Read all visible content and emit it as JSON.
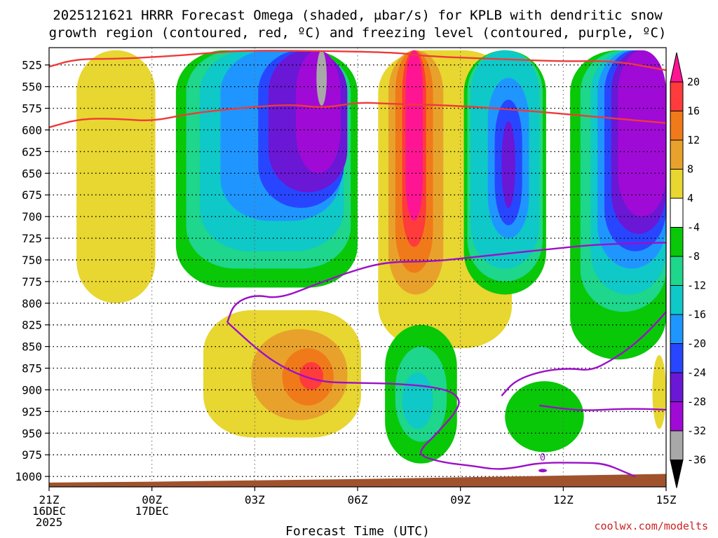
{
  "chart_data": {
    "type": "contour",
    "title_line1": "2025121621 HRRR Forecast Omega (shaded, μbar/s) for KPLB with dendritic snow",
    "title_line2": "growth region (contoured, red, ºC) and freezing level (contoured, purple, ºC)",
    "xlabel": "Forecast Time (UTC)",
    "credit": "coolwx.com/modelts",
    "y_ticks": [
      525,
      550,
      575,
      600,
      625,
      650,
      675,
      700,
      725,
      750,
      775,
      800,
      825,
      850,
      875,
      900,
      925,
      950,
      975,
      1000
    ],
    "y_range_hpa": [
      505,
      1012
    ],
    "x_range_hours": [
      0,
      18
    ],
    "x_ticks": [
      {
        "hour": 0,
        "lines": [
          "21Z",
          "16DEC",
          "2025"
        ]
      },
      {
        "hour": 3,
        "lines": [
          "00Z",
          "17DEC"
        ]
      },
      {
        "hour": 6,
        "lines": [
          "03Z"
        ]
      },
      {
        "hour": 9,
        "lines": [
          "06Z"
        ]
      },
      {
        "hour": 12,
        "lines": [
          "09Z"
        ]
      },
      {
        "hour": 15,
        "lines": [
          "12Z"
        ]
      },
      {
        "hour": 18,
        "lines": [
          "15Z"
        ]
      }
    ],
    "colorbar": {
      "labels": [
        "20",
        "16",
        "12",
        "8",
        "4",
        "-4",
        "-8",
        "-12",
        "-16",
        "-20",
        "-24",
        "-28",
        "-32",
        "-36"
      ],
      "colors": [
        "#ff1493",
        "#ff3b3b",
        "#f07a1a",
        "#e8a22c",
        "#e8d631",
        "#ffffff",
        "#08c808",
        "#1ed68c",
        "#0fc8c8",
        "#1f96ff",
        "#2846ff",
        "#6b17d6",
        "#a00ad6",
        "#a8a8a8"
      ]
    },
    "omega_regions": [
      {
        "cls": "col1-pos",
        "value": 4,
        "color": "#e8d631",
        "t0": 0.8,
        "t1": 3.1,
        "p0": 508,
        "p1": 800
      },
      {
        "cls": "col2-neg",
        "value": -8,
        "color": "#08c808",
        "t0": 3.7,
        "t1": 9.0,
        "p0": 508,
        "p1": 782
      },
      {
        "cls": "col2-neg",
        "value": -12,
        "color": "#1ed68c",
        "t0": 4.0,
        "t1": 8.8,
        "p0": 508,
        "p1": 760
      },
      {
        "cls": "col2-neg",
        "value": -16,
        "color": "#0fc8c8",
        "t0": 4.4,
        "t1": 8.6,
        "p0": 508,
        "p1": 740
      },
      {
        "cls": "col2-neg",
        "value": -20,
        "color": "#1f96ff",
        "t0": 5.0,
        "t1": 8.5,
        "p0": 508,
        "p1": 705
      },
      {
        "cls": "col2-neg",
        "value": -24,
        "color": "#2846ff",
        "t0": 6.1,
        "t1": 8.6,
        "p0": 508,
        "p1": 690
      },
      {
        "cls": "col2-neg",
        "value": -28,
        "color": "#6b17d6",
        "t0": 6.4,
        "t1": 8.7,
        "p0": 508,
        "p1": 672
      },
      {
        "cls": "col2-neg",
        "value": -32,
        "color": "#a00ad6",
        "t0": 7.2,
        "t1": 8.5,
        "p0": 508,
        "p1": 650
      },
      {
        "cls": "col2-neg",
        "value": -36,
        "color": "#a8a8a8",
        "t0": 7.8,
        "t1": 8.1,
        "p0": 508,
        "p1": 572
      },
      {
        "cls": "col3-pos",
        "value": 4,
        "color": "#e8d631",
        "t0": 9.6,
        "t1": 13.5,
        "p0": 508,
        "p1": 852
      },
      {
        "cls": "col3-pos",
        "value": 8,
        "color": "#e8a22c",
        "t0": 9.9,
        "t1": 11.5,
        "p0": 508,
        "p1": 790
      },
      {
        "cls": "col3-pos",
        "value": 12,
        "color": "#f07a1a",
        "t0": 10.1,
        "t1": 11.2,
        "p0": 508,
        "p1": 765
      },
      {
        "cls": "col3-pos",
        "value": 16,
        "color": "#ff3b3b",
        "t0": 10.3,
        "t1": 11.0,
        "p0": 508,
        "p1": 735
      },
      {
        "cls": "col3-pos",
        "value": 20,
        "color": "#ff1493",
        "t0": 10.4,
        "t1": 10.9,
        "p0": 508,
        "p1": 705
      },
      {
        "cls": "col4-neg",
        "value": -8,
        "color": "#08c808",
        "t0": 12.1,
        "t1": 14.5,
        "p0": 508,
        "p1": 790
      },
      {
        "cls": "col4-neg",
        "value": -12,
        "color": "#1ed68c",
        "t0": 12.2,
        "t1": 14.4,
        "p0": 508,
        "p1": 775
      },
      {
        "cls": "col4-neg",
        "value": -16,
        "color": "#0fc8c8",
        "t0": 12.3,
        "t1": 14.3,
        "p0": 508,
        "p1": 760
      },
      {
        "cls": "col4-neg",
        "value": -20,
        "color": "#1f96ff",
        "t0": 12.8,
        "t1": 14.0,
        "p0": 540,
        "p1": 725
      },
      {
        "cls": "col4-neg",
        "value": -24,
        "color": "#2846ff",
        "t0": 13.0,
        "t1": 13.8,
        "p0": 565,
        "p1": 710
      },
      {
        "cls": "col4-neg",
        "value": -28,
        "color": "#6b17d6",
        "t0": 13.2,
        "t1": 13.6,
        "p0": 590,
        "p1": 690
      },
      {
        "cls": "col5-neg",
        "value": -8,
        "color": "#08c808",
        "t0": 15.2,
        "t1": 18.0,
        "p0": 508,
        "p1": 865
      },
      {
        "cls": "col5-neg",
        "value": -12,
        "color": "#1ed68c",
        "t0": 15.5,
        "t1": 18.0,
        "p0": 508,
        "p1": 810
      },
      {
        "cls": "col5-neg",
        "value": -16,
        "color": "#0fc8c8",
        "t0": 15.8,
        "t1": 18.0,
        "p0": 508,
        "p1": 790
      },
      {
        "cls": "col5-neg",
        "value": -20,
        "color": "#1f96ff",
        "t0": 16.0,
        "t1": 18.0,
        "p0": 508,
        "p1": 760
      },
      {
        "cls": "col5-neg",
        "value": -24,
        "color": "#2846ff",
        "t0": 16.2,
        "t1": 18.0,
        "p0": 508,
        "p1": 740
      },
      {
        "cls": "col5-neg",
        "value": -28,
        "color": "#6b17d6",
        "t0": 16.4,
        "t1": 18.0,
        "p0": 508,
        "p1": 720
      },
      {
        "cls": "col5-neg",
        "value": -32,
        "color": "#a00ad6",
        "t0": 16.6,
        "t1": 18.0,
        "p0": 508,
        "p1": 700
      },
      {
        "cls": "low-pos",
        "value": 4,
        "color": "#e8d631",
        "t0": 4.5,
        "t1": 9.1,
        "p0": 808,
        "p1": 955
      },
      {
        "cls": "low-pos",
        "value": 8,
        "color": "#e8a22c",
        "t0": 5.9,
        "t1": 8.7,
        "p0": 830,
        "p1": 935
      },
      {
        "cls": "low-pos",
        "value": 12,
        "color": "#f07a1a",
        "t0": 6.8,
        "t1": 8.3,
        "p0": 852,
        "p1": 918
      },
      {
        "cls": "low-pos",
        "value": 16,
        "color": "#ff3b3b",
        "t0": 7.3,
        "t1": 8.0,
        "p0": 868,
        "p1": 900
      },
      {
        "cls": "low-neg",
        "value": -8,
        "color": "#08c808",
        "t0": 9.8,
        "t1": 11.9,
        "p0": 825,
        "p1": 985
      },
      {
        "cls": "low-neg",
        "value": -12,
        "color": "#1ed68c",
        "t0": 10.1,
        "t1": 11.6,
        "p0": 850,
        "p1": 960
      },
      {
        "cls": "low-neg",
        "value": -16,
        "color": "#0fc8c8",
        "t0": 10.3,
        "t1": 11.2,
        "p0": 880,
        "p1": 945
      },
      {
        "cls": "low-neg2",
        "value": -8,
        "color": "#08c808",
        "t0": 13.3,
        "t1": 15.6,
        "p0": 890,
        "p1": 972
      },
      {
        "cls": "edge-pos",
        "value": 4,
        "color": "#e8d631",
        "t0": 17.6,
        "t1": 18.0,
        "p0": 860,
        "p1": 945
      }
    ],
    "dgz_lines": [
      {
        "name": "upper",
        "points": [
          [
            0,
            527
          ],
          [
            0.8,
            518
          ],
          [
            2.0,
            518
          ],
          [
            3.5,
            515
          ],
          [
            5.0,
            510
          ],
          [
            6.0,
            508
          ],
          [
            10.0,
            510
          ],
          [
            11.0,
            515
          ],
          [
            13.0,
            518
          ],
          [
            15.0,
            521
          ],
          [
            16.5,
            520
          ],
          [
            18.0,
            531
          ]
        ]
      },
      {
        "name": "lower",
        "points": [
          [
            0,
            597
          ],
          [
            0.9,
            587
          ],
          [
            2.0,
            587
          ],
          [
            3.0,
            590
          ],
          [
            4.0,
            582
          ],
          [
            5.0,
            577
          ],
          [
            7.0,
            570
          ],
          [
            8.0,
            575
          ],
          [
            9.0,
            568
          ],
          [
            10.0,
            570
          ],
          [
            12.0,
            572
          ],
          [
            14.0,
            578
          ],
          [
            16.0,
            585
          ],
          [
            18.0,
            592
          ]
        ]
      }
    ],
    "freezing_lines": [
      {
        "name": "main",
        "points": [
          [
            5.2,
            822
          ],
          [
            5.4,
            800
          ],
          [
            6.0,
            790
          ],
          [
            6.7,
            795
          ],
          [
            7.8,
            778
          ],
          [
            8.9,
            762
          ],
          [
            9.9,
            752
          ],
          [
            11.2,
            752
          ],
          [
            12.8,
            745
          ],
          [
            14.5,
            738
          ],
          [
            16.0,
            732
          ],
          [
            18.0,
            730
          ]
        ]
      },
      {
        "name": "lower-branch",
        "points": [
          [
            5.2,
            822
          ],
          [
            6.2,
            858
          ],
          [
            7.0,
            878
          ],
          [
            7.9,
            891
          ],
          [
            9.0,
            892
          ],
          [
            10.2,
            893
          ],
          [
            11.3,
            897
          ],
          [
            11.9,
            905
          ],
          [
            12.0,
            920
          ],
          [
            11.2,
            955
          ],
          [
            10.9,
            966
          ],
          [
            10.8,
            976
          ],
          [
            11.5,
            984
          ],
          [
            12.4,
            988
          ],
          [
            13.0,
            992
          ],
          [
            13.6,
            990
          ],
          [
            14.3,
            984
          ],
          [
            15.5,
            984
          ],
          [
            16.2,
            985
          ],
          [
            16.8,
            995
          ],
          [
            17.1,
            1000
          ]
        ]
      },
      {
        "name": "branch-right",
        "points": [
          [
            13.2,
            907
          ],
          [
            13.6,
            889
          ],
          [
            14.4,
            878
          ],
          [
            15.2,
            875
          ],
          [
            15.8,
            878
          ],
          [
            16.4,
            866
          ],
          [
            17.0,
            850
          ],
          [
            17.6,
            828
          ],
          [
            18.0,
            810
          ]
        ]
      },
      {
        "name": "branch-flat",
        "points": [
          [
            14.3,
            918
          ],
          [
            15.0,
            922
          ],
          [
            15.7,
            924
          ],
          [
            16.6,
            922
          ],
          [
            17.4,
            922
          ],
          [
            18.0,
            923
          ]
        ]
      }
    ],
    "terrain": {
      "color": "#a0522d",
      "points": [
        [
          0,
          1007
        ],
        [
          3.0,
          1006
        ],
        [
          9.0,
          1003
        ],
        [
          12.0,
          1001
        ],
        [
          15.0,
          999
        ],
        [
          18.0,
          997
        ]
      ]
    },
    "zero_label": {
      "text": "0",
      "hour": 14.4,
      "p": 977
    }
  }
}
